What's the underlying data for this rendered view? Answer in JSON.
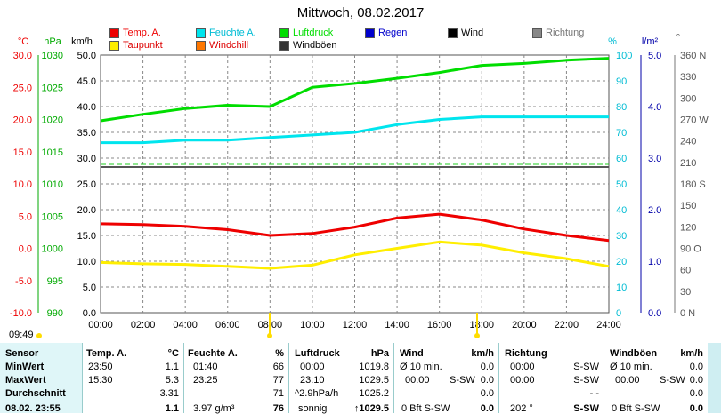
{
  "page_title": "Mittwoch, 08.02.2017",
  "legend": [
    {
      "label": "Temp. A.",
      "color": "#ee0000"
    },
    {
      "label": "Feuchte A.",
      "color": "#00e5ee"
    },
    {
      "label": "Luftdruck",
      "color": "#00dd00"
    },
    {
      "label": "Regen",
      "color": "#0000cc"
    },
    {
      "label": "Wind",
      "color": "#000000"
    },
    {
      "label": "Richtung",
      "color": "#888888"
    },
    {
      "label": "Taupunkt",
      "color": "#ffee00"
    },
    {
      "label": "Windchill",
      "color": "#ff7700"
    },
    {
      "label": "Windböen",
      "color": "#333333"
    }
  ],
  "axes": {
    "temp": {
      "unit": "°C",
      "ticks": [
        "30.0",
        "25.0",
        "20.0",
        "15.0",
        "10.0",
        "5.0",
        "0.0",
        "-5.0",
        "-10.0"
      ]
    },
    "hpa": {
      "unit": "hPa",
      "ticks": [
        "1030",
        "1025",
        "1020",
        "1015",
        "1010",
        "1005",
        "1000",
        "995",
        "990"
      ]
    },
    "kmh": {
      "unit": "km/h",
      "ticks": [
        "50.0",
        "45.0",
        "40.0",
        "35.0",
        "30.0",
        "25.0",
        "20.0",
        "15.0",
        "10.0",
        "5.0",
        "0.0"
      ]
    },
    "pct": {
      "unit": "%",
      "ticks": [
        "100",
        "90",
        "80",
        "70",
        "60",
        "50",
        "40",
        "30",
        "20",
        "10",
        "0"
      ]
    },
    "rain": {
      "unit": "l/m²",
      "ticks": [
        "5.0",
        "4.0",
        "3.0",
        "2.0",
        "1.0",
        "0.0"
      ]
    },
    "dir": {
      "unit": "°",
      "ticks": [
        "360 N",
        "330",
        "300",
        "270 W",
        "240",
        "210",
        "180 S",
        "150",
        "120",
        "90 O",
        "60",
        "30",
        "0 N"
      ]
    },
    "x": [
      "00:00",
      "02:00",
      "04:00",
      "06:00",
      "08:00",
      "10:00",
      "12:00",
      "14:00",
      "16:00",
      "18:00",
      "20:00",
      "22:00",
      "24:00"
    ]
  },
  "chart_data": {
    "type": "line",
    "x": [
      "00:00",
      "02:00",
      "04:00",
      "06:00",
      "08:00",
      "10:00",
      "12:00",
      "14:00",
      "16:00",
      "18:00",
      "20:00",
      "22:00",
      "24:00"
    ],
    "series": [
      {
        "name": "Temp. A.",
        "unit": "°C",
        "color": "#ee0000",
        "values": [
          3.8,
          3.7,
          3.4,
          2.9,
          2.0,
          2.3,
          3.3,
          4.7,
          5.3,
          4.4,
          3.0,
          2.0,
          1.2
        ]
      },
      {
        "name": "Taupunkt",
        "unit": "°C",
        "color": "#ffee00",
        "values": [
          -2.2,
          -2.4,
          -2.5,
          -2.8,
          -3.1,
          -2.6,
          -1.0,
          0.0,
          1.0,
          0.5,
          -0.7,
          -1.6,
          -2.8
        ]
      },
      {
        "name": "Luftdruck",
        "unit": "hPa",
        "color": "#00dd00",
        "values": [
          1019.8,
          1020.8,
          1021.7,
          1022.2,
          1022.0,
          1025.0,
          1025.6,
          1026.4,
          1027.3,
          1028.4,
          1028.7,
          1029.2,
          1029.5
        ]
      },
      {
        "name": "Feuchte A.",
        "unit": "%",
        "color": "#00e5ee",
        "values": [
          66,
          66,
          67,
          67,
          68,
          69,
          70,
          73,
          75,
          76,
          76,
          76,
          76
        ]
      }
    ],
    "ylim_temp": [
      -10,
      30
    ],
    "ylim_hpa": [
      990,
      1030
    ],
    "ylim_pct": [
      0,
      100
    ]
  },
  "current_time": "09:49",
  "table": {
    "row_labels": [
      "Sensor",
      "MinWert",
      "MaxWert",
      "Durchschnitt",
      "08.02. 23:55"
    ],
    "temp": {
      "header": "Temp. A.",
      "unit": "°C",
      "min_time": "23:50",
      "min": "1.1",
      "max_time": "15:30",
      "max": "5.3",
      "avg": "3.31",
      "cur": "1.1"
    },
    "hum": {
      "header": "Feuchte A.",
      "unit": "%",
      "min_time": "01:40",
      "min": "66",
      "max_time": "23:25",
      "max": "77",
      "avg": "71",
      "cur_extra": "3.97 g/m³",
      "cur": "76"
    },
    "press": {
      "header": "Luftdruck",
      "unit": "hPa",
      "min_time": "00:00",
      "min": "1019.8",
      "max_time": "23:10",
      "max": "1029.5",
      "avg_note": "^2.9hPa/h",
      "avg": "1025.2",
      "cur_note": "sonnig",
      "cur": "↑1029.5"
    },
    "wind": {
      "header": "Wind",
      "unit": "km/h",
      "min_label": "Ø 10 min.",
      "min": "0.0",
      "max_time": "00:00",
      "max_dir": "S-SW",
      "max": "0.0",
      "avg": "0.0",
      "cur_note": "0 Bft S-SW",
      "cur": "0.0"
    },
    "dir": {
      "header": "Richtung",
      "min_time": "00:00",
      "min": "S-SW",
      "max_time": "00:00",
      "max": "S-SW",
      "avg": "- -",
      "cur_deg": "202 °",
      "cur": "S-SW"
    },
    "gust": {
      "header": "Windböen",
      "unit": "km/h",
      "min_label": "Ø 10 min.",
      "min": "0.0",
      "max_time": "00:00",
      "max_dir": "S-SW",
      "max": "0.0",
      "avg": "0.0",
      "cur_note": "0 Bft S-SW",
      "cur": "0.0"
    }
  }
}
